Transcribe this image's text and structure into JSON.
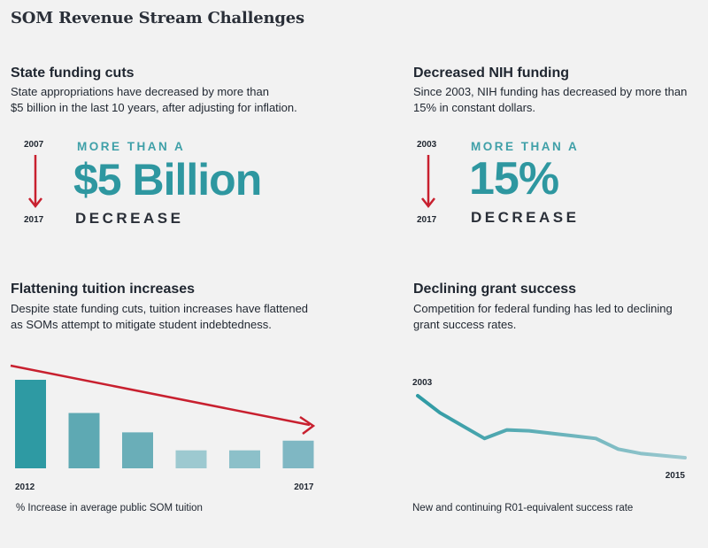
{
  "page_title": "SOM Revenue Stream Challenges",
  "panels": {
    "state": {
      "heading": "State funding cuts",
      "body_line1": "State appropriations have decreased by more than",
      "body_line2": "$5 billion in the last 10 years, after adjusting for inflation.",
      "year_start": "2007",
      "year_end": "2017",
      "kicker": "MORE THAN A",
      "big_value": "$5 Billion",
      "sub": "DECREASE"
    },
    "nih": {
      "heading": "Decreased NIH funding",
      "body_line1": "Since 2003, NIH funding has decreased by more than",
      "body_line2": "15% in constant dollars.",
      "year_start": "2003",
      "year_end": "2017",
      "kicker": "MORE THAN A",
      "big_value": "15%",
      "sub": "DECREASE"
    },
    "tuition": {
      "heading": "Flattening tuition increases",
      "body_line1": "Despite state funding cuts, tuition increases have flattened",
      "body_line2": "as SOMs attempt to mitigate student indebtedness.",
      "caption": "% Increase in average public SOM tuition"
    },
    "grants": {
      "heading": "Declining grant success",
      "body_line1": "Competition for federal funding has led to declining",
      "body_line2": "grant success rates.",
      "caption": "New and continuing R01-equivalent success rate"
    }
  },
  "colors": {
    "arrow_red": "#c8202f",
    "teal_dark": "#2e9aa3",
    "teal_mid": "#5ea9b3",
    "teal_light": "#9dc9d0"
  },
  "chart_data": [
    {
      "type": "bar",
      "categories": [
        "2012",
        "",
        "",
        "",
        "",
        "2017"
      ],
      "values": [
        6.4,
        4.0,
        2.6,
        1.3,
        1.3,
        2.0
      ],
      "bar_colors": [
        "#2e9aa3",
        "#5ea9b3",
        "#6aaeb8",
        "#9dc9d0",
        "#8cc0c9",
        "#7fb7c3"
      ],
      "ylim": [
        0,
        7
      ],
      "xlabel": "% Increase in average public SOM tuition",
      "trend_arrow": "downward, red"
    },
    {
      "type": "line",
      "x": [
        2003,
        2004,
        2005,
        2006,
        2007,
        2008,
        2009,
        2010,
        2011,
        2012,
        2013,
        2014,
        2015
      ],
      "y": [
        32,
        28,
        25,
        22,
        24,
        23.8,
        23.2,
        22.6,
        22.0,
        19.5,
        18.5,
        18.0,
        17.5
      ],
      "tick_labels": [
        "2003",
        "2015"
      ],
      "xlabel": "New and continuing R01-equivalent success rate",
      "ylim": [
        15,
        33
      ],
      "color_gradient": [
        "#2e9aa3",
        "#9dc9d0"
      ]
    }
  ]
}
